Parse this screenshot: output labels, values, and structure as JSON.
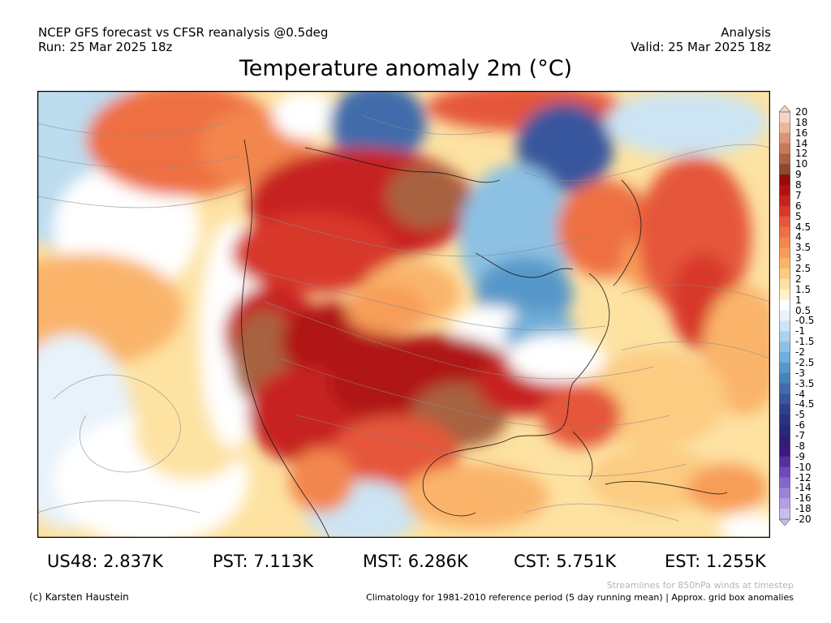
{
  "header": {
    "line1": "NCEP GFS forecast vs CFSR reanalysis @0.5deg",
    "line2": "Run: 25 Mar 2025 18z",
    "right1": "Analysis",
    "right2": "Valid: 25 Mar 2025 18z"
  },
  "title": "Temperature anomaly 2m (°C)",
  "colorbar": {
    "labels": [
      "20",
      "18",
      "16",
      "14",
      "12",
      "10",
      "9",
      "8",
      "7",
      "6",
      "5",
      "4.5",
      "4",
      "3.5",
      "3",
      "2.5",
      "2",
      "1.5",
      "1",
      "0.5",
      "-0.5",
      "-1",
      "-1.5",
      "-2",
      "-2.5",
      "-3",
      "-3.5",
      "-4",
      "-4.5",
      "-5",
      "-6",
      "-7",
      "-8",
      "-9",
      "-10",
      "-12",
      "-14",
      "-16",
      "-18",
      "-20"
    ],
    "colors": [
      "#f6d4c4",
      "#ebb79c",
      "#d9957a",
      "#c57b5e",
      "#a8623f",
      "#8b4a2e",
      "#960b0b",
      "#b01212",
      "#c72222",
      "#d8382c",
      "#e5573b",
      "#ee6f43",
      "#f3864d",
      "#f79d59",
      "#fab46a",
      "#fccc82",
      "#fde2a2",
      "#fff1c8",
      "#ffffff",
      "#e7f2fa",
      "#cce4f3",
      "#acd3ec",
      "#8cc1e3",
      "#6faed8",
      "#5698c9",
      "#4a82bb",
      "#406cac",
      "#37569d",
      "#2d408c",
      "#28347f",
      "#282a78",
      "#2d2070",
      "#3a1a7e",
      "#53309f",
      "#6c4ab9",
      "#8466cb",
      "#9c83d8",
      "#b3a0e3",
      "#c9bdee"
    ]
  },
  "stats": {
    "us48": "US48: 2.837K",
    "pst": "PST: 7.113K",
    "mst": "MST: 6.286K",
    "cst": "CST: 5.751K",
    "est": "EST: 1.255K"
  },
  "footer": {
    "credit": "(c) Karsten Haustein",
    "streamlines": "Streamlines for 850hPa winds at timestep",
    "climatology": "Climatology for 1981-2010 reference period (5 day running mean) | Approx. grid box anomalies"
  }
}
